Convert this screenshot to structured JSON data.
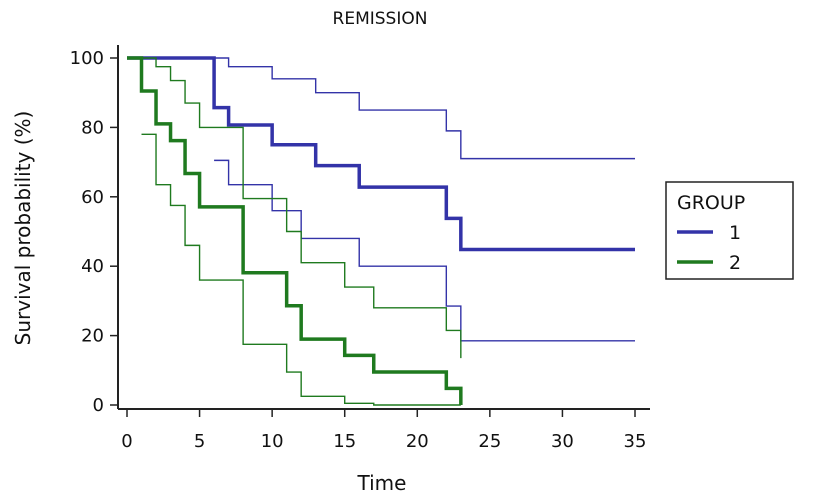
{
  "chart_data": {
    "type": "line",
    "subtype": "kaplan-meier",
    "title": "REMISSION",
    "xlabel": "Time",
    "ylabel": "Survival probability (%)",
    "xlim": [
      0,
      35
    ],
    "ylim": [
      0,
      100
    ],
    "xticks": [
      0,
      5,
      10,
      15,
      20,
      25,
      30,
      35
    ],
    "yticks": [
      0,
      20,
      40,
      60,
      80,
      100
    ],
    "grid": false,
    "legend": {
      "title": "GROUP",
      "position": "right"
    },
    "series": [
      {
        "name": "1",
        "color": "#3333a8",
        "survival": {
          "x": [
            0,
            6,
            7,
            10,
            13,
            16,
            22,
            23,
            35
          ],
          "y": [
            100,
            85.7,
            80.7,
            75.0,
            69.0,
            62.8,
            53.8,
            44.8,
            44.8
          ]
        },
        "upper_ci": {
          "x": [
            0,
            7,
            10,
            13,
            16,
            22,
            23,
            35
          ],
          "y": [
            100,
            97.5,
            94.0,
            90.0,
            85.0,
            79.0,
            71.0,
            71.0
          ]
        },
        "lower_ci": {
          "x": [
            6,
            7,
            10,
            12,
            16,
            22,
            23,
            35
          ],
          "y": [
            70.5,
            63.5,
            56.0,
            48.0,
            40.0,
            28.5,
            18.5,
            18.5
          ]
        }
      },
      {
        "name": "2",
        "color": "#1f7a1f",
        "survival": {
          "x": [
            0,
            1,
            2,
            3,
            4,
            5,
            8,
            11,
            12,
            15,
            17,
            22,
            23
          ],
          "y": [
            100,
            90.5,
            81.0,
            76.2,
            66.7,
            57.1,
            38.1,
            28.6,
            19.0,
            14.3,
            9.5,
            4.8,
            0
          ]
        },
        "upper_ci": {
          "x": [
            0,
            2,
            3,
            4,
            5,
            8,
            11,
            12,
            15,
            17,
            22,
            23
          ],
          "y": [
            100,
            97.5,
            93.5,
            87.0,
            80.0,
            59.5,
            50.0,
            41.0,
            34.0,
            28.0,
            21.5,
            13.5
          ]
        },
        "lower_ci": {
          "x": [
            1,
            2,
            3,
            4,
            5,
            8,
            11,
            12,
            15,
            17,
            22,
            23
          ],
          "y": [
            78.0,
            63.5,
            57.5,
            46.0,
            36.0,
            17.5,
            9.5,
            2.5,
            0.5,
            0,
            0,
            0
          ]
        }
      }
    ]
  }
}
